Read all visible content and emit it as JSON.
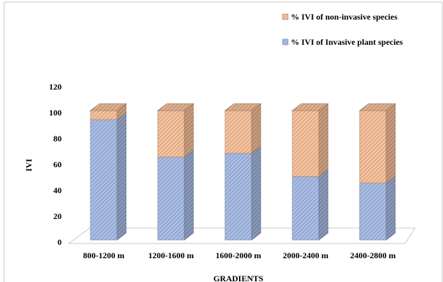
{
  "chart_data": {
    "type": "bar",
    "stacked": true,
    "categories": [
      "800-1200  m",
      "1200-1600  m",
      "1600-2000  m",
      "2000-2400  m",
      "2400-2800  m"
    ],
    "series": [
      {
        "name": "% IVI of Invasive plant species",
        "color": "#a9bde6",
        "values": [
          93,
          64,
          67,
          49,
          44
        ]
      },
      {
        "name": "% IVI of non-invasive species",
        "color": "#f7c29c",
        "values": [
          7,
          36,
          33,
          51,
          56
        ]
      }
    ],
    "ylabel": "IVI",
    "xlabel": "GRADIENTS",
    "ylim": [
      0,
      120
    ],
    "yticks": [
      0,
      20,
      40,
      60,
      80,
      100,
      120
    ],
    "grid": false
  }
}
